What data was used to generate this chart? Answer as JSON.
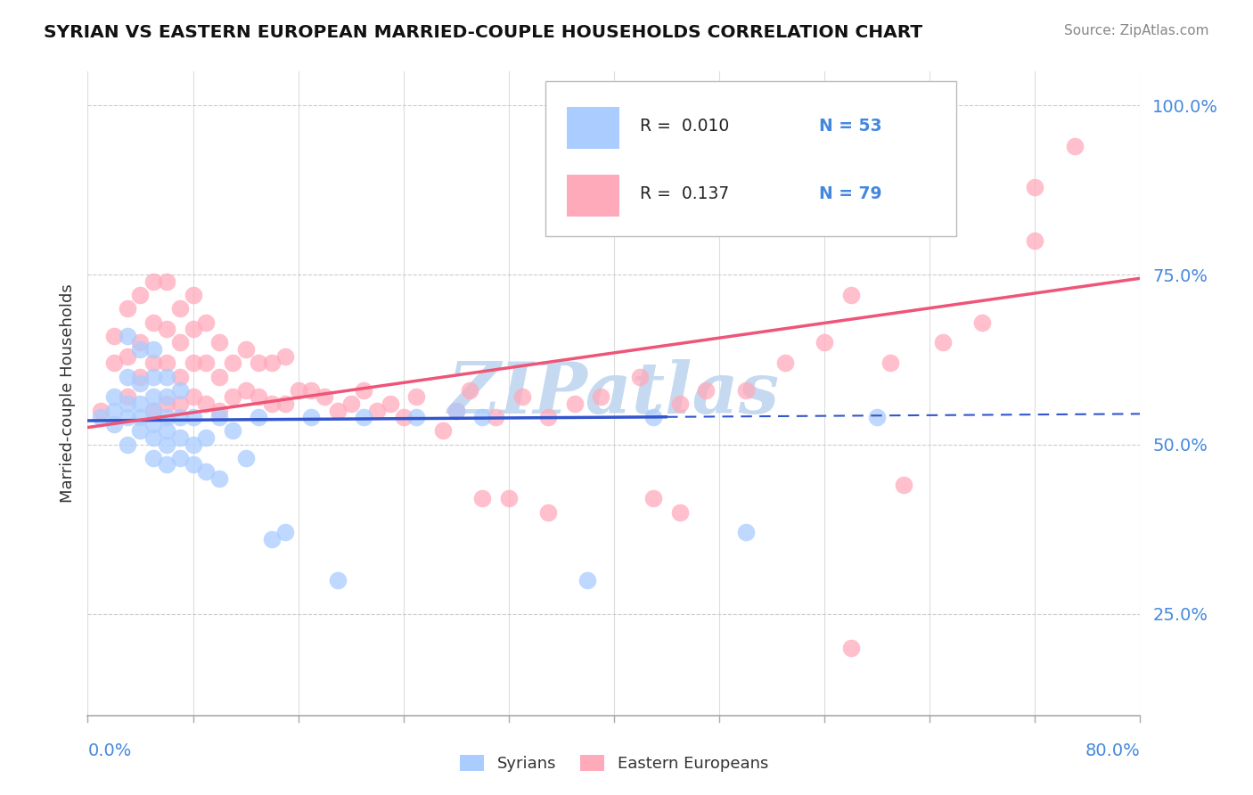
{
  "title": "SYRIAN VS EASTERN EUROPEAN MARRIED-COUPLE HOUSEHOLDS CORRELATION CHART",
  "source": "Source: ZipAtlas.com",
  "xlabel_start": "0.0%",
  "xlabel_end": "80.0%",
  "ylabel": "Married-couple Households",
  "xmin": 0.0,
  "xmax": 0.8,
  "ymin": 0.1,
  "ymax": 1.05,
  "yticks": [
    0.25,
    0.5,
    0.75,
    1.0
  ],
  "ytick_labels": [
    "25.0%",
    "50.0%",
    "75.0%",
    "100.0%"
  ],
  "legend_r1": "R =  0.010",
  "legend_n1": "N = 53",
  "legend_r2": "R =  0.137",
  "legend_n2": "N = 79",
  "color_syrians": "#aaccff",
  "color_eastern": "#ffaabb",
  "color_blue_text": "#4488dd",
  "line_color_syrians": "#3355cc",
  "line_color_eastern": "#ee5577",
  "watermark_color": "#c5daf0",
  "syrians_x": [
    0.01,
    0.02,
    0.02,
    0.02,
    0.03,
    0.03,
    0.03,
    0.03,
    0.03,
    0.04,
    0.04,
    0.04,
    0.04,
    0.04,
    0.05,
    0.05,
    0.05,
    0.05,
    0.05,
    0.05,
    0.05,
    0.06,
    0.06,
    0.06,
    0.06,
    0.06,
    0.06,
    0.07,
    0.07,
    0.07,
    0.07,
    0.08,
    0.08,
    0.08,
    0.09,
    0.09,
    0.1,
    0.1,
    0.11,
    0.12,
    0.13,
    0.14,
    0.15,
    0.17,
    0.19,
    0.21,
    0.25,
    0.28,
    0.3,
    0.38,
    0.43,
    0.5,
    0.6
  ],
  "syrians_y": [
    0.54,
    0.53,
    0.55,
    0.57,
    0.5,
    0.54,
    0.56,
    0.6,
    0.66,
    0.52,
    0.54,
    0.56,
    0.59,
    0.64,
    0.48,
    0.51,
    0.53,
    0.55,
    0.57,
    0.6,
    0.64,
    0.47,
    0.5,
    0.52,
    0.54,
    0.57,
    0.6,
    0.48,
    0.51,
    0.54,
    0.58,
    0.47,
    0.5,
    0.54,
    0.46,
    0.51,
    0.45,
    0.54,
    0.52,
    0.48,
    0.54,
    0.36,
    0.37,
    0.54,
    0.3,
    0.54,
    0.54,
    0.55,
    0.54,
    0.3,
    0.54,
    0.37,
    0.54
  ],
  "eastern_x": [
    0.01,
    0.02,
    0.02,
    0.03,
    0.03,
    0.03,
    0.04,
    0.04,
    0.04,
    0.05,
    0.05,
    0.05,
    0.05,
    0.06,
    0.06,
    0.06,
    0.06,
    0.07,
    0.07,
    0.07,
    0.07,
    0.08,
    0.08,
    0.08,
    0.08,
    0.09,
    0.09,
    0.09,
    0.1,
    0.1,
    0.1,
    0.11,
    0.11,
    0.12,
    0.12,
    0.13,
    0.13,
    0.14,
    0.14,
    0.15,
    0.15,
    0.16,
    0.17,
    0.18,
    0.19,
    0.2,
    0.21,
    0.22,
    0.23,
    0.24,
    0.25,
    0.27,
    0.28,
    0.29,
    0.31,
    0.33,
    0.35,
    0.37,
    0.39,
    0.42,
    0.45,
    0.47,
    0.5,
    0.53,
    0.56,
    0.58,
    0.61,
    0.65,
    0.68,
    0.72,
    0.75,
    0.3,
    0.32,
    0.35,
    0.43,
    0.45,
    0.62,
    0.58,
    0.72
  ],
  "eastern_y": [
    0.55,
    0.62,
    0.66,
    0.57,
    0.63,
    0.7,
    0.6,
    0.65,
    0.72,
    0.55,
    0.62,
    0.68,
    0.74,
    0.56,
    0.62,
    0.67,
    0.74,
    0.56,
    0.6,
    0.65,
    0.7,
    0.57,
    0.62,
    0.67,
    0.72,
    0.56,
    0.62,
    0.68,
    0.55,
    0.6,
    0.65,
    0.57,
    0.62,
    0.58,
    0.64,
    0.57,
    0.62,
    0.56,
    0.62,
    0.56,
    0.63,
    0.58,
    0.58,
    0.57,
    0.55,
    0.56,
    0.58,
    0.55,
    0.56,
    0.54,
    0.57,
    0.52,
    0.55,
    0.58,
    0.54,
    0.57,
    0.54,
    0.56,
    0.57,
    0.6,
    0.56,
    0.58,
    0.58,
    0.62,
    0.65,
    0.72,
    0.62,
    0.65,
    0.68,
    0.8,
    0.94,
    0.42,
    0.42,
    0.4,
    0.42,
    0.4,
    0.44,
    0.2,
    0.88
  ],
  "syrian_line_x0": 0.0,
  "syrian_line_x1": 0.8,
  "syrian_line_y0": 0.535,
  "syrian_line_y1": 0.545,
  "syrian_line_solid_end": 0.44,
  "eastern_line_x0": 0.0,
  "eastern_line_x1": 0.8,
  "eastern_line_y0": 0.525,
  "eastern_line_y1": 0.745
}
